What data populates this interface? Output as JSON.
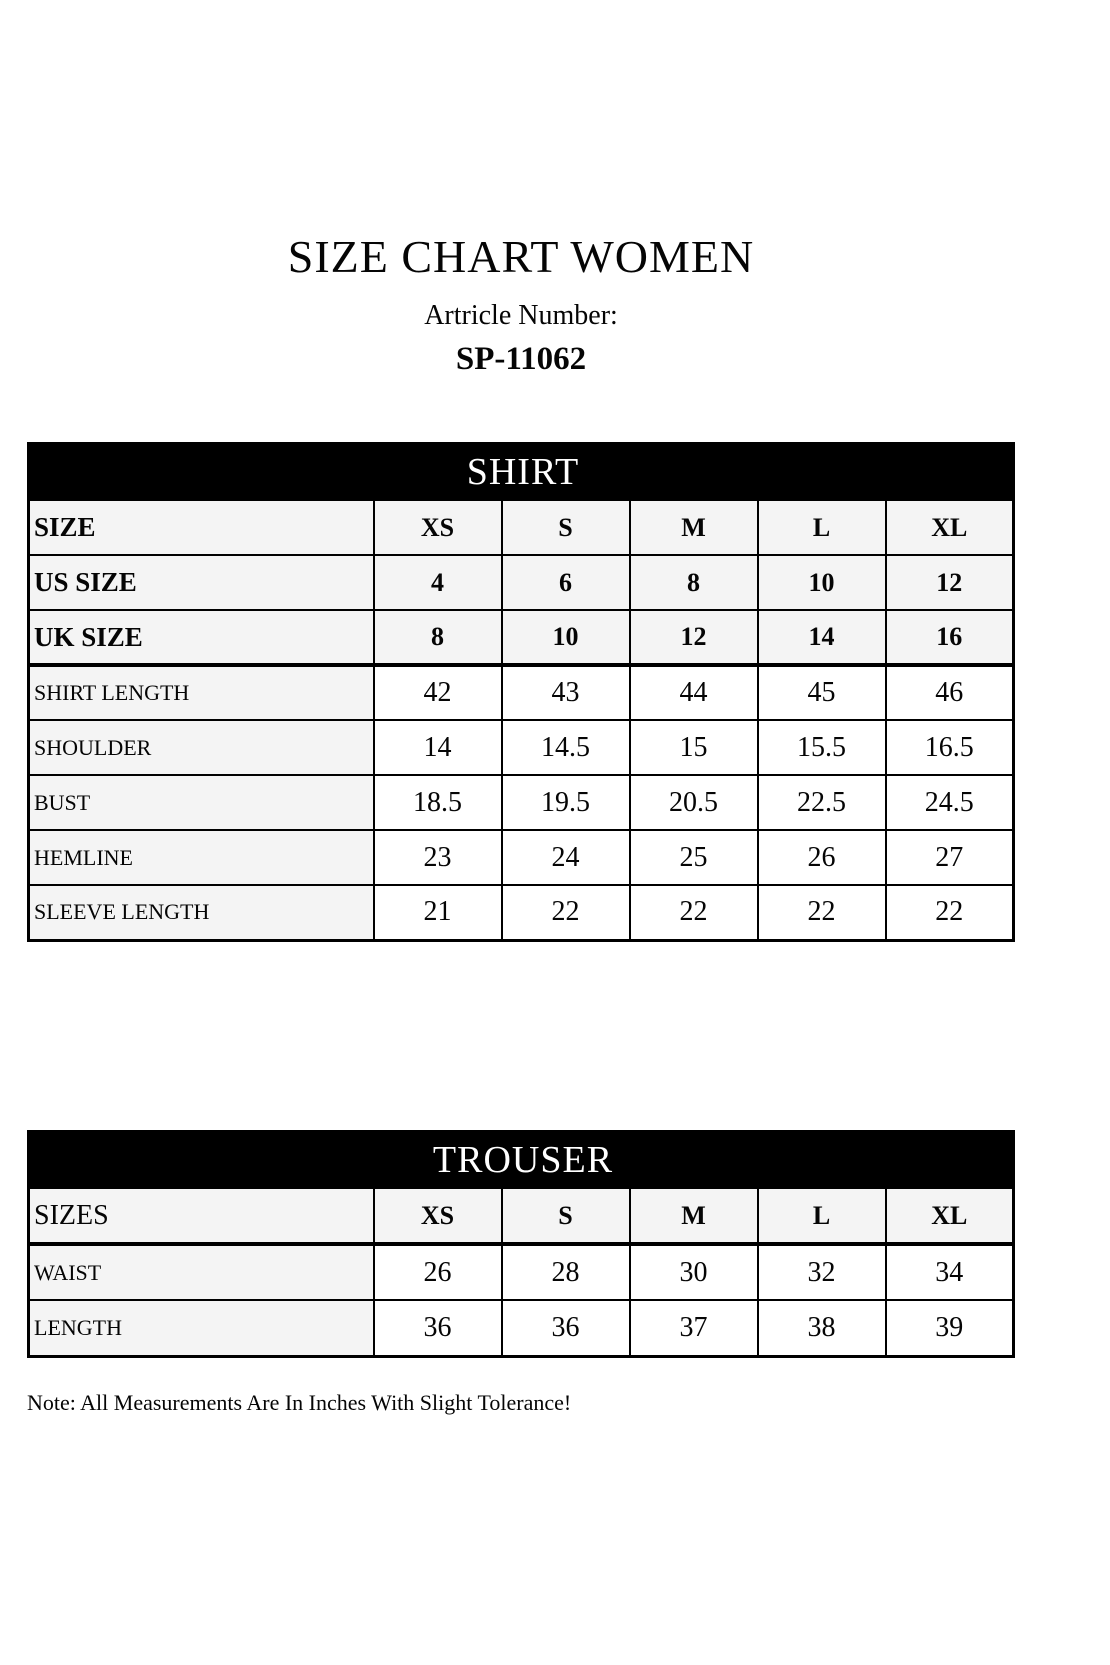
{
  "page": {
    "title": "SIZE CHART WOMEN",
    "article_label": "Artricle Number:",
    "article_number": "SP-11062",
    "note": "Note: All Measurements Are In Inches With Slight Tolerance!"
  },
  "colors": {
    "band_background": "#000000",
    "band_text": "#ffffff",
    "header_cell_background": "#f4f4f4",
    "value_cell_background": "#ffffff",
    "border": "#000000",
    "text": "#050505"
  },
  "tables": [
    {
      "name": "shirt",
      "title": "SHIRT",
      "rows": [
        {
          "label": "SIZE",
          "values": [
            "XS",
            "S",
            "M",
            "L",
            "XL"
          ],
          "style": "header"
        },
        {
          "label": "US SIZE",
          "values": [
            "4",
            "6",
            "8",
            "10",
            "12"
          ],
          "style": "header"
        },
        {
          "label": "UK SIZE",
          "values": [
            "8",
            "10",
            "12",
            "14",
            "16"
          ],
          "style": "header",
          "thick_bottom": true
        },
        {
          "label": "SHIRT LENGTH",
          "values": [
            "42",
            "43",
            "44",
            "45",
            "46"
          ],
          "style": "measure"
        },
        {
          "label": "SHOULDER",
          "values": [
            "14",
            "14.5",
            "15",
            "15.5",
            "16.5"
          ],
          "style": "measure"
        },
        {
          "label": "BUST",
          "values": [
            "18.5",
            "19.5",
            "20.5",
            "22.5",
            "24.5"
          ],
          "style": "measure"
        },
        {
          "label": "HEMLINE",
          "values": [
            "23",
            "24",
            "25",
            "26",
            "27"
          ],
          "style": "measure"
        },
        {
          "label": "SLEEVE LENGTH",
          "values": [
            "21",
            "22",
            "22",
            "22",
            "22"
          ],
          "style": "measure"
        }
      ]
    },
    {
      "name": "trouser",
      "title": "TROUSER",
      "rows": [
        {
          "label": "SIZES",
          "values": [
            "XS",
            "S",
            "M",
            "L",
            "XL"
          ],
          "style": "size",
          "thick_bottom": true
        },
        {
          "label": "WAIST",
          "values": [
            "26",
            "28",
            "30",
            "32",
            "34"
          ],
          "style": "measure"
        },
        {
          "label": "LENGTH",
          "values": [
            "36",
            "36",
            "37",
            "38",
            "39"
          ],
          "style": "measure"
        }
      ]
    }
  ]
}
